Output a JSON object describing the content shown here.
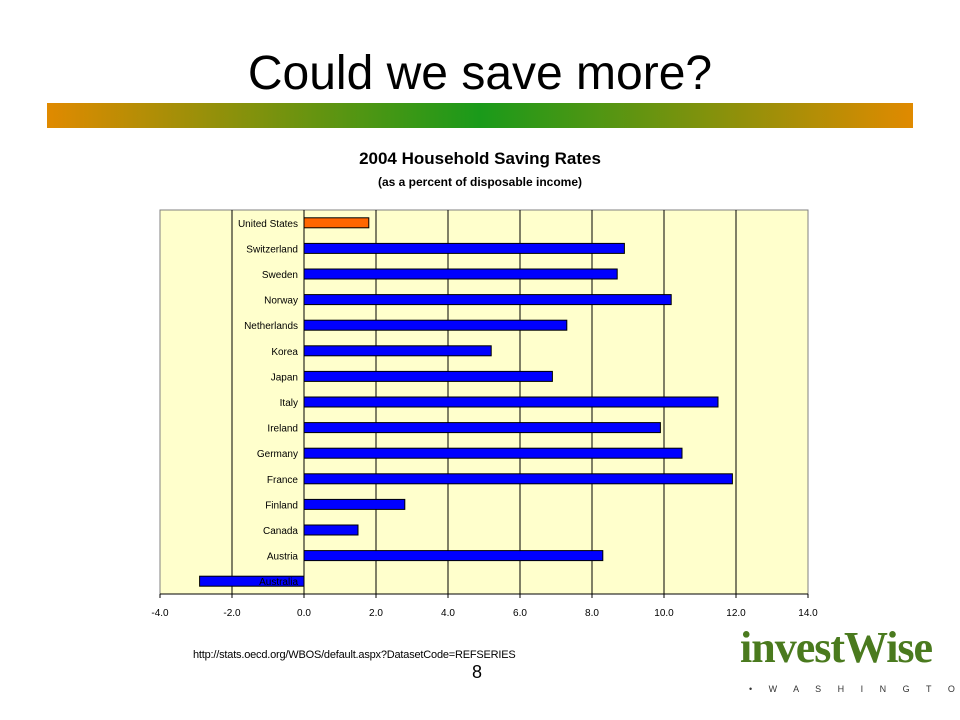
{
  "slide": {
    "title": "Could we save more?",
    "url": "http://stats.oecd.org/WBOS/default.aspx?DatasetCode=REFSERIES",
    "page_number": "8",
    "logo": {
      "text": "investWise",
      "tagline": "• W A S H I N G T O N •"
    }
  },
  "colors": {
    "plot_background": "#ffffcc",
    "us_bar": "#ff6600",
    "country_bar": "#0000ff",
    "title_rule_left": "#e08a00",
    "title_rule_mid": "#1a9a1a",
    "title_rule_right": "#e08a00"
  },
  "chart_data": {
    "type": "bar",
    "orientation": "horizontal",
    "title": "2004 Household Saving Rates",
    "subtitle": "(as a percent of disposable income)",
    "categories": [
      "United States",
      "Switzerland",
      "Sweden",
      "Norway",
      "Netherlands",
      "Korea",
      "Japan",
      "Italy",
      "Ireland",
      "Germany",
      "France",
      "Finland",
      "Canada",
      "Austria",
      "Australia"
    ],
    "values": [
      1.8,
      8.9,
      8.7,
      10.2,
      7.3,
      5.2,
      6.9,
      11.5,
      9.9,
      10.5,
      11.9,
      2.8,
      1.5,
      8.3,
      -2.9
    ],
    "highlight": "United States",
    "xlim": [
      -4.0,
      14.0
    ],
    "xticks": [
      "-4.0",
      "-2.0",
      "0.0",
      "2.0",
      "4.0",
      "6.0",
      "8.0",
      "10.0",
      "12.0",
      "14.0"
    ],
    "grid": "vertical major gridlines",
    "legend": "none"
  }
}
